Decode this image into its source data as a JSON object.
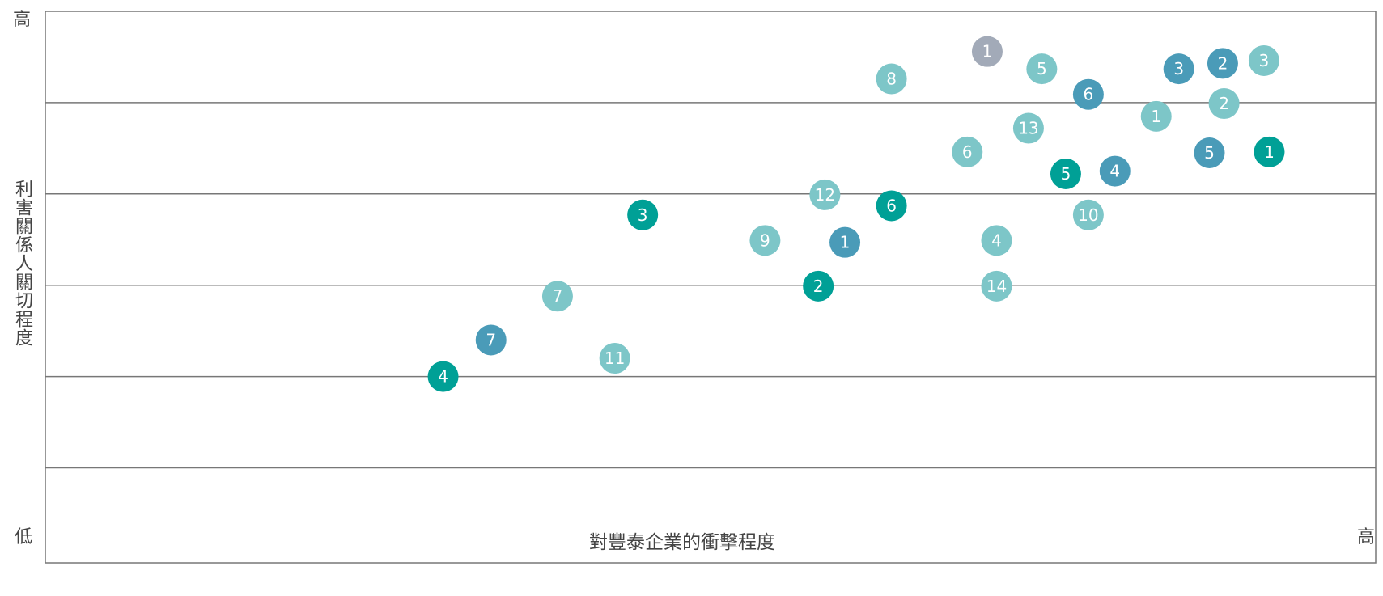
{
  "chart_data": {
    "type": "scatter",
    "xlabel": "對豐泰企業的衝擊程度",
    "ylabel": "利害關係人關切程度",
    "x_low_label": "低",
    "x_high_label": "高",
    "y_high_label": "高",
    "xlim": [
      0,
      100
    ],
    "ylim": [
      0,
      6
    ],
    "grid": "horizontal",
    "colors": {
      "light_teal": "#7dc6c8",
      "steel_blue": "#4a9bb8",
      "teal": "#00a096",
      "gray": "#a2aab8",
      "axis": "#777777"
    },
    "points": [
      {
        "label": "1",
        "x": 70.8,
        "y": 5.56,
        "color": "gray"
      },
      {
        "label": "8",
        "x": 63.6,
        "y": 5.26,
        "color": "light_teal"
      },
      {
        "label": "5",
        "x": 74.9,
        "y": 5.37,
        "color": "light_teal"
      },
      {
        "label": "3",
        "x": 85.2,
        "y": 5.37,
        "color": "steel_blue"
      },
      {
        "label": "2",
        "x": 88.5,
        "y": 5.43,
        "color": "steel_blue"
      },
      {
        "label": "3",
        "x": 91.6,
        "y": 5.46,
        "color": "light_teal"
      },
      {
        "label": "6",
        "x": 78.4,
        "y": 5.09,
        "color": "steel_blue"
      },
      {
        "label": "1",
        "x": 83.5,
        "y": 4.85,
        "color": "light_teal"
      },
      {
        "label": "2",
        "x": 88.6,
        "y": 4.99,
        "color": "light_teal"
      },
      {
        "label": "13",
        "x": 73.9,
        "y": 4.72,
        "color": "light_teal"
      },
      {
        "label": "6",
        "x": 69.3,
        "y": 4.46,
        "color": "light_teal"
      },
      {
        "label": "5",
        "x": 87.5,
        "y": 4.45,
        "color": "steel_blue"
      },
      {
        "label": "1",
        "x": 92.0,
        "y": 4.46,
        "color": "teal"
      },
      {
        "label": "5",
        "x": 76.7,
        "y": 4.22,
        "color": "teal"
      },
      {
        "label": "4",
        "x": 80.4,
        "y": 4.25,
        "color": "steel_blue"
      },
      {
        "label": "12",
        "x": 58.6,
        "y": 3.99,
        "color": "light_teal"
      },
      {
        "label": "6",
        "x": 63.6,
        "y": 3.87,
        "color": "teal"
      },
      {
        "label": "3",
        "x": 44.9,
        "y": 3.77,
        "color": "teal"
      },
      {
        "label": "10",
        "x": 78.4,
        "y": 3.77,
        "color": "light_teal"
      },
      {
        "label": "9",
        "x": 54.1,
        "y": 3.49,
        "color": "light_teal"
      },
      {
        "label": "1",
        "x": 60.1,
        "y": 3.47,
        "color": "steel_blue"
      },
      {
        "label": "4",
        "x": 71.5,
        "y": 3.49,
        "color": "light_teal"
      },
      {
        "label": "7",
        "x": 38.5,
        "y": 2.88,
        "color": "light_teal"
      },
      {
        "label": "2",
        "x": 58.1,
        "y": 2.99,
        "color": "teal"
      },
      {
        "label": "14",
        "x": 71.5,
        "y": 2.99,
        "color": "light_teal"
      },
      {
        "label": "7",
        "x": 33.5,
        "y": 2.4,
        "color": "steel_blue"
      },
      {
        "label": "11",
        "x": 42.8,
        "y": 2.2,
        "color": "light_teal"
      },
      {
        "label": "4",
        "x": 29.9,
        "y": 2.0,
        "color": "teal"
      }
    ]
  }
}
